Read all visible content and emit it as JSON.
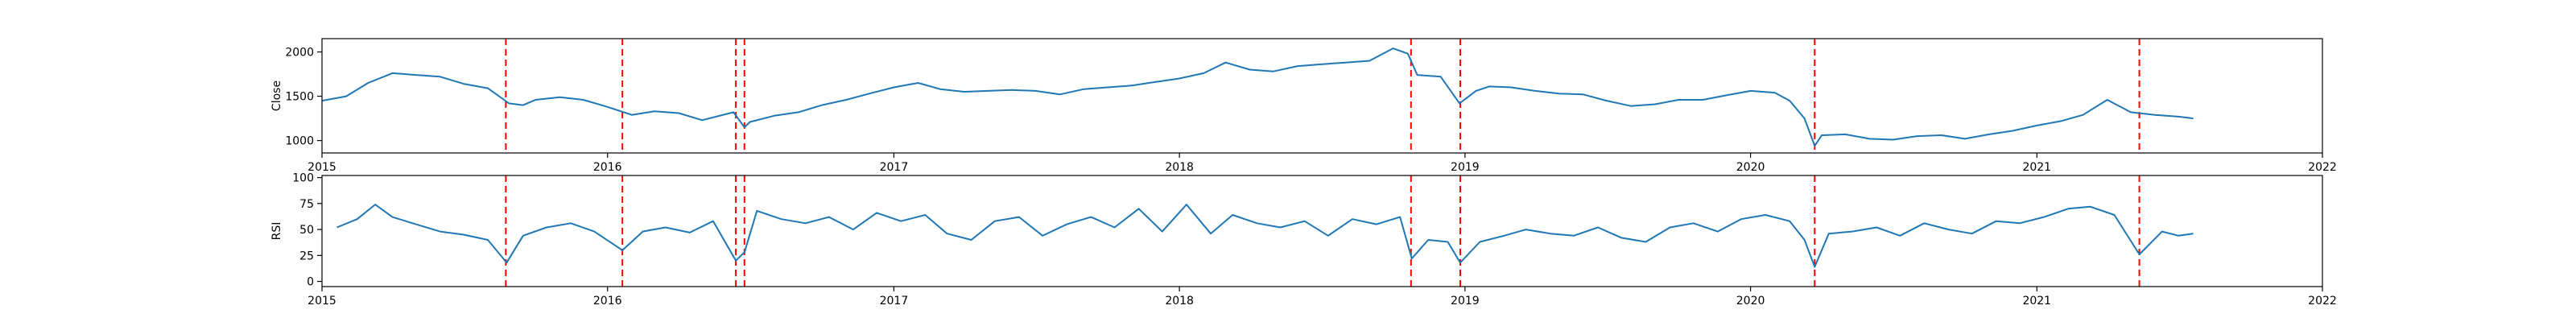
{
  "chart_data": [
    {
      "type": "line",
      "title": "",
      "xlabel": "",
      "ylabel": "Close",
      "xlim": [
        "2015-01-01",
        "2022-01-01"
      ],
      "ylim": [
        860,
        2150
      ],
      "yticks": [
        1000,
        1500,
        2000
      ],
      "ytick_labels": [
        "1000",
        "1500",
        "2000"
      ],
      "xticks": [
        "2015-01-01",
        "2016-01-01",
        "2017-01-01",
        "2018-01-01",
        "2019-01-01",
        "2020-01-01",
        "2021-01-01",
        "2022-01-01"
      ],
      "xtick_labels": [
        "2015",
        "2016",
        "2017",
        "2018",
        "2019",
        "2020",
        "2021",
        "2022"
      ],
      "grid": false,
      "line_color": "#1f77b4",
      "series": [
        {
          "x": [
            "2015-01-01",
            "2015-02-01",
            "2015-03-01",
            "2015-04-01",
            "2015-05-01",
            "2015-06-01",
            "2015-07-01",
            "2015-08-01",
            "2015-08-28",
            "2015-09-15",
            "2015-10-01",
            "2015-11-01",
            "2015-12-01",
            "2016-01-01",
            "2016-02-01",
            "2016-03-01",
            "2016-04-01",
            "2016-05-01",
            "2016-06-10",
            "2016-06-24",
            "2016-07-01",
            "2016-08-01",
            "2016-09-01",
            "2016-10-01",
            "2016-11-01",
            "2016-12-01",
            "2017-01-01",
            "2017-02-01",
            "2017-03-01",
            "2017-04-01",
            "2017-05-01",
            "2017-06-01",
            "2017-07-01",
            "2017-08-01",
            "2017-09-01",
            "2017-10-01",
            "2017-11-01",
            "2017-12-01",
            "2018-01-01",
            "2018-02-01",
            "2018-03-01",
            "2018-04-01",
            "2018-05-01",
            "2018-06-01",
            "2018-07-01",
            "2018-08-01",
            "2018-09-01",
            "2018-10-01",
            "2018-10-20",
            "2018-11-01",
            "2018-12-01",
            "2018-12-25",
            "2019-01-15",
            "2019-02-01",
            "2019-03-01",
            "2019-04-01",
            "2019-05-01",
            "2019-06-01",
            "2019-07-01",
            "2019-08-01",
            "2019-09-01",
            "2019-10-01",
            "2019-11-01",
            "2019-12-01",
            "2020-01-01",
            "2020-02-01",
            "2020-02-20",
            "2020-03-10",
            "2020-03-23",
            "2020-04-01",
            "2020-05-01",
            "2020-06-01",
            "2020-07-01",
            "2020-08-01",
            "2020-09-01",
            "2020-10-01",
            "2020-11-01",
            "2020-12-01",
            "2021-01-01",
            "2021-02-01",
            "2021-03-01",
            "2021-04-01",
            "2021-05-01",
            "2021-06-01",
            "2021-07-01",
            "2021-07-20"
          ],
          "y": [
            1450,
            1500,
            1650,
            1760,
            1740,
            1720,
            1640,
            1590,
            1420,
            1400,
            1460,
            1490,
            1460,
            1380,
            1290,
            1330,
            1310,
            1230,
            1320,
            1150,
            1210,
            1280,
            1320,
            1400,
            1460,
            1530,
            1600,
            1650,
            1580,
            1550,
            1560,
            1570,
            1560,
            1520,
            1580,
            1600,
            1620,
            1660,
            1700,
            1760,
            1880,
            1800,
            1780,
            1840,
            1860,
            1880,
            1900,
            2040,
            1980,
            1740,
            1720,
            1420,
            1560,
            1610,
            1600,
            1560,
            1530,
            1520,
            1450,
            1390,
            1410,
            1460,
            1460,
            1510,
            1560,
            1540,
            1450,
            1250,
            940,
            1060,
            1070,
            1020,
            1010,
            1050,
            1060,
            1020,
            1070,
            1110,
            1170,
            1220,
            1290,
            1460,
            1320,
            1290,
            1270,
            1250
          ]
        }
      ],
      "event_markers": [
        "2015-08-24",
        "2016-01-20",
        "2016-06-13",
        "2016-06-24",
        "2018-10-24",
        "2018-12-26",
        "2020-03-23",
        "2021-05-12"
      ],
      "event_color": "#ff0000"
    },
    {
      "type": "line",
      "title": "",
      "xlabel": "",
      "ylabel": "RSI",
      "xlim": [
        "2015-01-01",
        "2022-01-01"
      ],
      "ylim": [
        -5,
        102
      ],
      "yticks": [
        0,
        25,
        50,
        75,
        100
      ],
      "ytick_labels": [
        "0",
        "25",
        "50",
        "75",
        "100"
      ],
      "xticks": [
        "2015-01-01",
        "2016-01-01",
        "2017-01-01",
        "2018-01-01",
        "2019-01-01",
        "2020-01-01",
        "2021-01-01",
        "2022-01-01"
      ],
      "xtick_labels": [
        "2015",
        "2016",
        "2017",
        "2018",
        "2019",
        "2020",
        "2021",
        "2022"
      ],
      "grid": false,
      "line_color": "#1f77b4",
      "series": [
        {
          "x": [
            "2015-01-20",
            "2015-02-15",
            "2015-03-10",
            "2015-04-01",
            "2015-05-01",
            "2015-06-01",
            "2015-07-01",
            "2015-08-01",
            "2015-08-25",
            "2015-09-15",
            "2015-10-15",
            "2015-11-15",
            "2015-12-15",
            "2016-01-20",
            "2016-02-15",
            "2016-03-15",
            "2016-04-15",
            "2016-05-15",
            "2016-06-13",
            "2016-06-24",
            "2016-07-10",
            "2016-08-10",
            "2016-09-10",
            "2016-10-10",
            "2016-11-10",
            "2016-12-10",
            "2017-01-10",
            "2017-02-10",
            "2017-03-10",
            "2017-04-10",
            "2017-05-10",
            "2017-06-10",
            "2017-07-10",
            "2017-08-10",
            "2017-09-10",
            "2017-10-10",
            "2017-11-10",
            "2017-12-10",
            "2018-01-10",
            "2018-02-10",
            "2018-03-10",
            "2018-04-10",
            "2018-05-10",
            "2018-06-10",
            "2018-07-10",
            "2018-08-10",
            "2018-09-10",
            "2018-10-10",
            "2018-10-25",
            "2018-11-15",
            "2018-12-10",
            "2018-12-26",
            "2019-01-20",
            "2019-02-20",
            "2019-03-20",
            "2019-04-20",
            "2019-05-20",
            "2019-06-20",
            "2019-07-20",
            "2019-08-20",
            "2019-09-20",
            "2019-10-20",
            "2019-11-20",
            "2019-12-20",
            "2020-01-20",
            "2020-02-20",
            "2020-03-10",
            "2020-03-23",
            "2020-04-10",
            "2020-05-10",
            "2020-06-10",
            "2020-07-10",
            "2020-08-10",
            "2020-09-10",
            "2020-10-10",
            "2020-11-10",
            "2020-12-10",
            "2021-01-10",
            "2021-02-10",
            "2021-03-10",
            "2021-04-10",
            "2021-05-12",
            "2021-06-10",
            "2021-07-01",
            "2021-07-20"
          ],
          "y": [
            52,
            60,
            74,
            62,
            55,
            48,
            45,
            40,
            18,
            44,
            52,
            56,
            48,
            30,
            48,
            52,
            47,
            58,
            20,
            28,
            68,
            60,
            56,
            62,
            50,
            66,
            58,
            64,
            46,
            40,
            58,
            62,
            44,
            55,
            62,
            52,
            70,
            48,
            74,
            46,
            64,
            56,
            52,
            58,
            44,
            60,
            55,
            62,
            22,
            40,
            38,
            18,
            38,
            44,
            50,
            46,
            44,
            52,
            42,
            38,
            52,
            56,
            48,
            60,
            64,
            58,
            40,
            14,
            46,
            48,
            52,
            44,
            56,
            50,
            46,
            58,
            56,
            62,
            70,
            72,
            64,
            26,
            48,
            44,
            46
          ]
        }
      ],
      "event_markers": [
        "2015-08-24",
        "2016-01-20",
        "2016-06-13",
        "2016-06-24",
        "2018-10-24",
        "2018-12-26",
        "2020-03-23",
        "2021-05-12"
      ],
      "event_color": "#ff0000"
    }
  ]
}
